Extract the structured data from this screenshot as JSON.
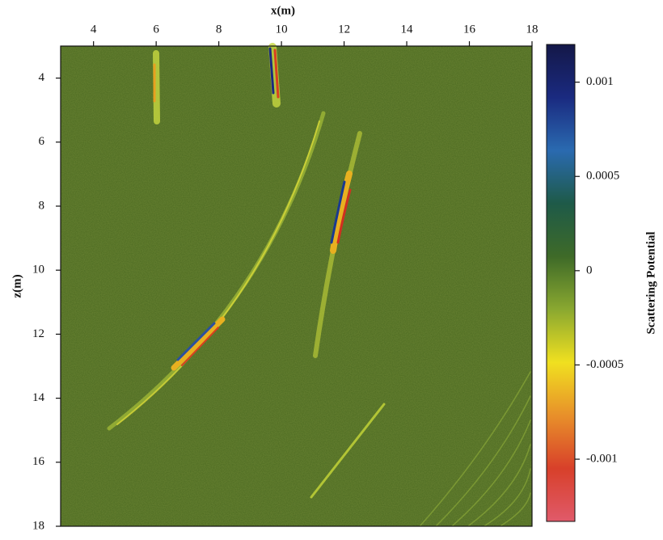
{
  "chart_data": {
    "type": "heatmap",
    "x_label": "x(m)",
    "y_label": "z(m)",
    "colorbar_label": "Scattering Potential",
    "xlim": [
      2.95,
      18
    ],
    "xticks": [
      4,
      6,
      8,
      10,
      12,
      14,
      16,
      18
    ],
    "ylim": [
      3,
      18
    ],
    "yticks": [
      4,
      6,
      8,
      10,
      12,
      14,
      16,
      18
    ],
    "zlim": [
      -0.00133,
      0.0012
    ],
    "zticks": [
      0.001,
      0.0005,
      0,
      -0.0005,
      -0.001
    ],
    "colormap": [
      "#e05a6a",
      "#d8402a",
      "#e8902a",
      "#f0e020",
      "#8aa830",
      "#3e6a28",
      "#1e5a48",
      "#2a6ab0",
      "#1a2a80",
      "#141848"
    ]
  }
}
